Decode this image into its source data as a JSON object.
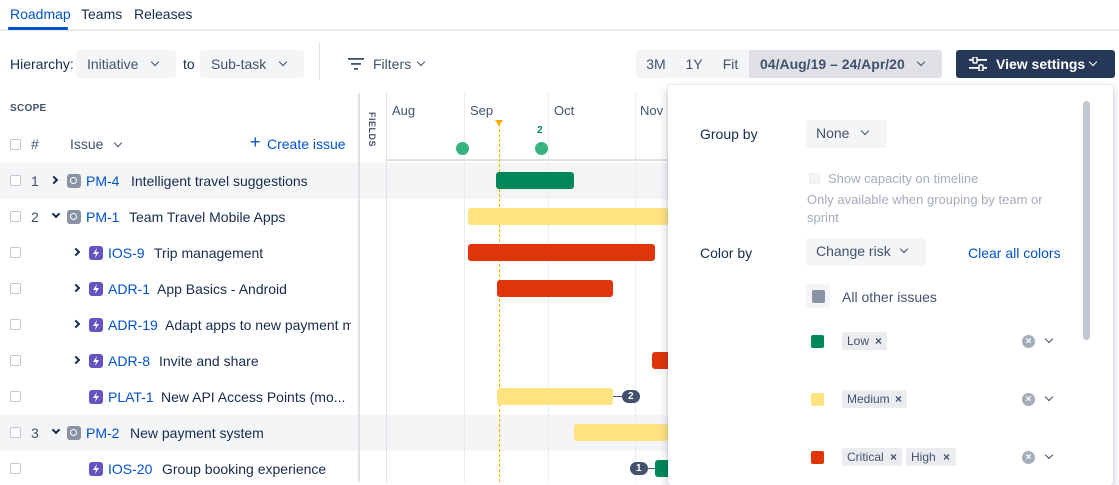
{
  "nav": {
    "tabs": [
      {
        "label": "Roadmap"
      },
      {
        "label": "Teams"
      },
      {
        "label": "Releases"
      }
    ]
  },
  "toolbar": {
    "hierarchy_label": "Hierarchy:",
    "hierarchy_from": "Initiative",
    "to_label": "to",
    "hierarchy_to": "Sub-task",
    "filters_label": "Filters",
    "zoom": [
      "3M",
      "1Y",
      "Fit"
    ],
    "date_range": "04/Aug/19 – 24/Apr/20",
    "view_settings_label": "View settings"
  },
  "scope": {
    "label": "SCOPE",
    "num_header": "#",
    "issue_header": "Issue",
    "create_issue": "Create issue",
    "fields_label": "FIELDS"
  },
  "timeline": {
    "months": [
      "Aug",
      "Sep",
      "Oct",
      "Nov"
    ],
    "release_count": "2",
    "connector_badges": [
      "2",
      "1"
    ]
  },
  "issues": [
    {
      "num": "1",
      "key": "PM-4",
      "title": "Intelligent travel suggestions",
      "type": "initiative"
    },
    {
      "num": "2",
      "key": "PM-1",
      "title": "Team Travel Mobile Apps",
      "type": "initiative"
    },
    {
      "num": "",
      "key": "IOS-9",
      "title": "Trip management",
      "type": "subtask"
    },
    {
      "num": "",
      "key": "ADR-1",
      "title": "App Basics - Android",
      "type": "subtask"
    },
    {
      "num": "",
      "key": "ADR-19",
      "title": "Adapt apps to new payment me",
      "type": "subtask"
    },
    {
      "num": "",
      "key": "ADR-8",
      "title": "Invite and share",
      "type": "subtask"
    },
    {
      "num": "",
      "key": "PLAT-1",
      "title": "New API Access Points (mo...",
      "type": "subtask"
    },
    {
      "num": "3",
      "key": "PM-2",
      "title": "New payment system",
      "type": "initiative"
    },
    {
      "num": "",
      "key": "IOS-20",
      "title": "Group booking experience",
      "type": "subtask"
    }
  ],
  "colors": {
    "low": "#00875a",
    "medium": "#ffe380",
    "high": "#de350b",
    "other": "#8993a4",
    "accent": "#0052cc"
  },
  "panel": {
    "group_by_label": "Group by",
    "group_by_value": "None",
    "show_capacity_label": "Show capacity on timeline",
    "capacity_note": "Only available when grouping by team or sprint",
    "color_by_label": "Color by",
    "color_by_value": "Change risk",
    "clear_all_colors": "Clear all colors",
    "all_other_issues": "All other issues",
    "tags_low": "Low",
    "tags_medium": "Medium",
    "tags_critical": "Critical",
    "tags_high": "High"
  }
}
